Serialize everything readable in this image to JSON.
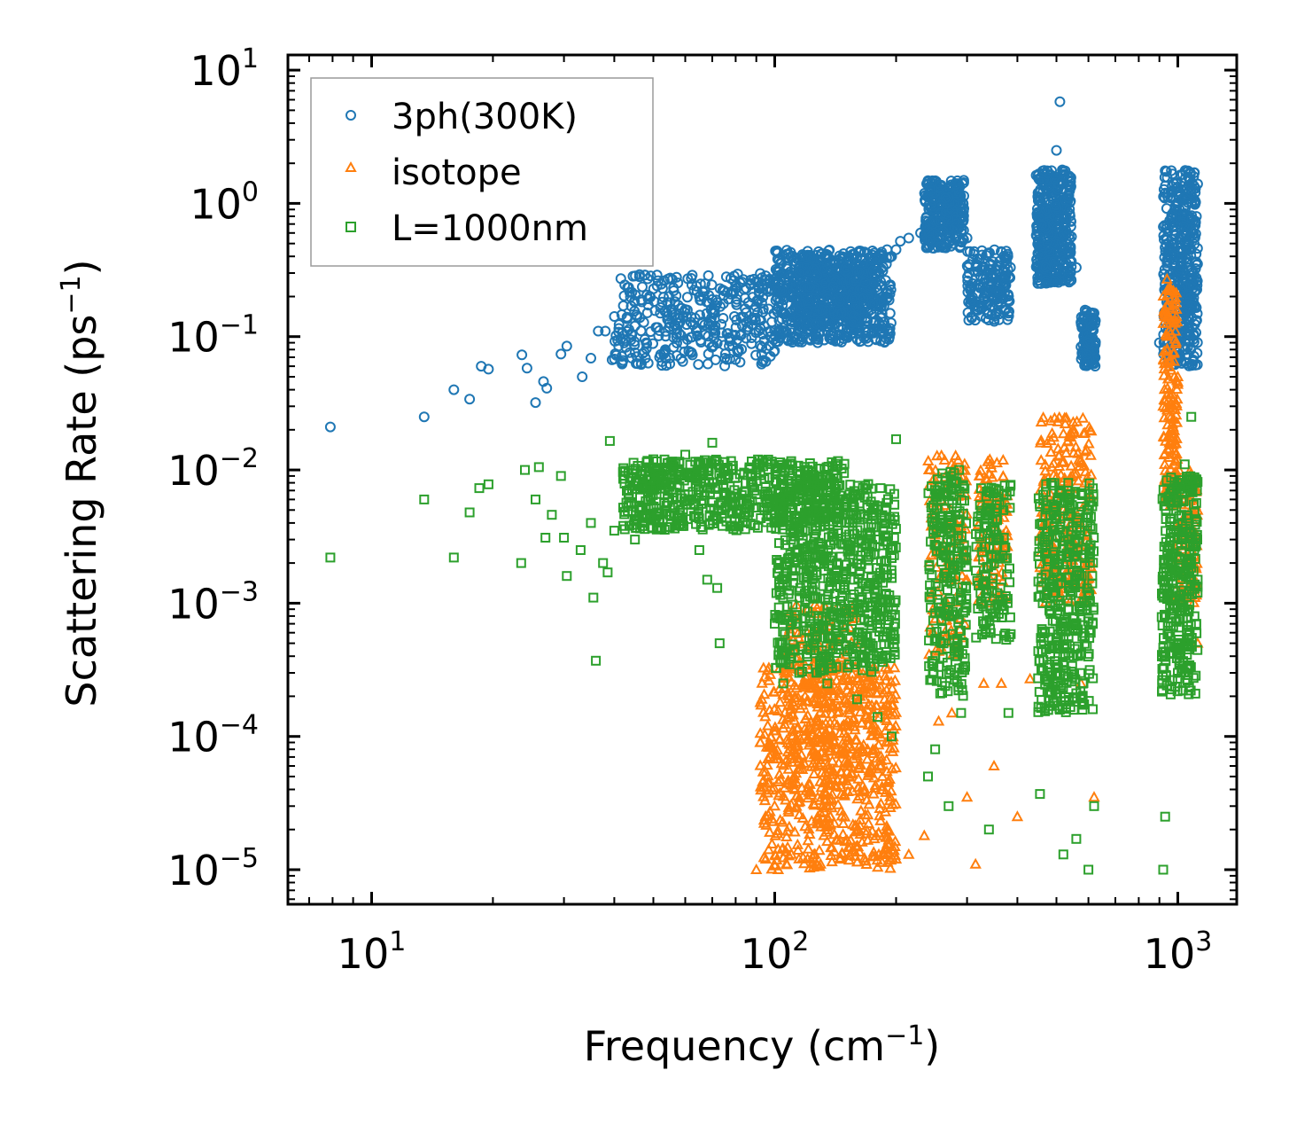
{
  "chart_data": {
    "type": "scatter",
    "xscale": "log",
    "yscale": "log",
    "xlim": [
      6.2,
      1400
    ],
    "ylim": [
      5.5e-06,
      13
    ],
    "xlabel": "Frequency (cm",
    "xlabel_sup": "−1",
    "xlabel_end": ")",
    "ylabel": "Scattering Rate (ps",
    "ylabel_sup": "−1",
    "ylabel_end": ")",
    "x_ticks": [
      {
        "value": 10,
        "base": "10",
        "exp": "1"
      },
      {
        "value": 100,
        "base": "10",
        "exp": "2"
      },
      {
        "value": 1000,
        "base": "10",
        "exp": "3"
      }
    ],
    "y_ticks": [
      {
        "value": 10,
        "base": "10",
        "exp": "1"
      },
      {
        "value": 1,
        "base": "10",
        "exp": "0"
      },
      {
        "value": 0.1,
        "base": "10",
        "exp": "−1"
      },
      {
        "value": 0.01,
        "base": "10",
        "exp": "−2"
      },
      {
        "value": 0.001,
        "base": "10",
        "exp": "−3"
      },
      {
        "value": 0.0001,
        "base": "10",
        "exp": "−4"
      },
      {
        "value": 1e-05,
        "base": "10",
        "exp": "−5"
      }
    ],
    "legend_position": "top-left",
    "series": [
      {
        "name": "3ph(300K)",
        "marker": "circle",
        "color": "#1f77b4",
        "points": [
          [
            7.9,
            0.021
          ],
          [
            13.5,
            0.025
          ],
          [
            16,
            0.04
          ],
          [
            17.5,
            0.034
          ],
          [
            18.7,
            0.06
          ],
          [
            19.5,
            0.057
          ],
          [
            23.6,
            0.073
          ],
          [
            24.3,
            0.058
          ],
          [
            25.5,
            0.032
          ],
          [
            26.7,
            0.046
          ],
          [
            27.2,
            0.041
          ],
          [
            29.5,
            0.074
          ],
          [
            30.5,
            0.085
          ],
          [
            33.3,
            0.05
          ],
          [
            35,
            0.069
          ],
          [
            36.5,
            0.11
          ],
          [
            38,
            0.11
          ],
          [
            39.5,
            0.067
          ],
          [
            41,
            0.085
          ],
          [
            43,
            0.14
          ],
          [
            45,
            0.12
          ],
          [
            48,
            0.09
          ],
          [
            52,
            0.15
          ],
          [
            55,
            0.18
          ],
          [
            60,
            0.16
          ],
          [
            65,
            0.2
          ],
          [
            70,
            0.19
          ],
          [
            75,
            0.22
          ],
          [
            80,
            0.24
          ],
          [
            85,
            0.23
          ],
          [
            90,
            0.26
          ],
          [
            95,
            0.25
          ],
          [
            100,
            0.22
          ],
          [
            108,
            0.28
          ],
          [
            115,
            0.3
          ],
          [
            120,
            0.34
          ],
          [
            125,
            0.32
          ],
          [
            130,
            0.38
          ],
          [
            140,
            0.35
          ],
          [
            150,
            0.33
          ],
          [
            160,
            0.4
          ],
          [
            170,
            0.42
          ],
          [
            180,
            0.38
          ],
          [
            190,
            0.45
          ],
          [
            195,
            0.4
          ],
          [
            200,
            0.45
          ],
          [
            205,
            0.52
          ],
          [
            215,
            0.55
          ],
          [
            230,
            0.6
          ],
          [
            245,
            0.95
          ],
          [
            255,
            1.3
          ],
          [
            265,
            1.1
          ],
          [
            275,
            0.9
          ],
          [
            290,
            0.85
          ],
          [
            300,
            0.55
          ],
          [
            310,
            0.38
          ],
          [
            325,
            0.32
          ],
          [
            340,
            0.26
          ],
          [
            360,
            0.22
          ],
          [
            380,
            0.15
          ],
          [
            450,
            1.2
          ],
          [
            470,
            0.9
          ],
          [
            490,
            0.7
          ],
          [
            500,
            2.5
          ],
          [
            510,
            5.8
          ],
          [
            520,
            1.6
          ],
          [
            535,
            1.1
          ],
          [
            560,
            0.33
          ],
          [
            580,
            0.12
          ],
          [
            600,
            0.09
          ],
          [
            620,
            0.15
          ],
          [
            900,
            0.09
          ],
          [
            930,
            0.25
          ],
          [
            950,
            0.22
          ],
          [
            970,
            0.15
          ],
          [
            1000,
            0.3
          ],
          [
            1040,
            0.6
          ],
          [
            1080,
            1.2
          ],
          [
            1100,
            1.7
          ],
          [
            1120,
            1.4
          ]
        ],
        "bands": [
          {
            "x": [
              40,
              100
            ],
            "y": [
              0.06,
              0.3
            ],
            "n": 360
          },
          {
            "x": [
              100,
              195
            ],
            "y": [
              0.09,
              0.45
            ],
            "n": 650
          },
          {
            "x": [
              110,
              180
            ],
            "y": [
              0.12,
              0.35
            ],
            "n": 220
          },
          {
            "x": [
              235,
              295
            ],
            "y": [
              0.45,
              1.5
            ],
            "n": 300
          },
          {
            "x": [
              300,
              385
            ],
            "y": [
              0.13,
              0.45
            ],
            "n": 170
          },
          {
            "x": [
              445,
              545
            ],
            "y": [
              0.25,
              1.8
            ],
            "n": 420
          },
          {
            "x": [
              575,
              625
            ],
            "y": [
              0.06,
              0.16
            ],
            "n": 110
          },
          {
            "x": [
              920,
              1120
            ],
            "y": [
              0.06,
              1.8
            ],
            "n": 420
          }
        ]
      },
      {
        "name": "isotope",
        "marker": "triangle",
        "color": "#ff7f0e",
        "points": [
          [
            90,
            1e-05
          ],
          [
            95,
            1.2e-05
          ],
          [
            102,
            1e-05
          ],
          [
            110,
            1.3e-05
          ],
          [
            130,
            1.1e-05
          ],
          [
            145,
            1.2e-05
          ],
          [
            170,
            8e-05
          ],
          [
            185,
            5e-05
          ],
          [
            190,
            2e-05
          ],
          [
            200,
            1.2e-05
          ],
          [
            215,
            1.3e-05
          ],
          [
            235,
            1.8e-05
          ],
          [
            255,
            0.00013
          ],
          [
            275,
            0.00015
          ],
          [
            300,
            3.5e-05
          ],
          [
            315,
            1.1e-05
          ],
          [
            330,
            0.00025
          ],
          [
            350,
            6e-05
          ],
          [
            365,
            0.00025
          ],
          [
            400,
            2.5e-05
          ],
          [
            430,
            0.00027
          ],
          [
            520,
            0.005
          ],
          [
            575,
            0.00025
          ],
          [
            620,
            3.5e-05
          ],
          [
            920,
            0.03
          ],
          [
            940,
            0.27
          ],
          [
            980,
            0.05
          ],
          [
            1000,
            0.05
          ],
          [
            1080,
            0.008
          ],
          [
            1120,
            0.0005
          ]
        ],
        "bands": [
          {
            "x": [
              92,
              200
            ],
            "y": [
              1e-05,
              0.00035
            ],
            "n": 650
          },
          {
            "x": [
              105,
              165
            ],
            "y": [
              3e-05,
              0.001
            ],
            "n": 220
          },
          {
            "x": [
              240,
              300
            ],
            "y": [
              0.0004,
              0.013
            ],
            "n": 120
          },
          {
            "x": [
              320,
              380
            ],
            "y": [
              0.001,
              0.012
            ],
            "n": 110
          },
          {
            "x": [
              455,
              610
            ],
            "y": [
              0.001,
              0.025
            ],
            "n": 220
          },
          {
            "x": [
              920,
              1000
            ],
            "y": [
              0.005,
              0.25
            ],
            "n": 170
          },
          {
            "x": [
              1000,
              1120
            ],
            "y": [
              0.001,
              0.01
            ],
            "n": 90
          }
        ]
      },
      {
        "name": "L=1000nm",
        "marker": "square",
        "color": "#2ca02c",
        "points": [
          [
            7.9,
            0.0022
          ],
          [
            13.5,
            0.006
          ],
          [
            16,
            0.0022
          ],
          [
            17.5,
            0.0048
          ],
          [
            18.5,
            0.0073
          ],
          [
            19.5,
            0.0078
          ],
          [
            23.5,
            0.002
          ],
          [
            24,
            0.01
          ],
          [
            25.5,
            0.006
          ],
          [
            26,
            0.0105
          ],
          [
            27,
            0.0031
          ],
          [
            28,
            0.0046
          ],
          [
            29.5,
            0.009
          ],
          [
            30,
            0.0031
          ],
          [
            30.5,
            0.0016
          ],
          [
            33,
            0.0025
          ],
          [
            35,
            0.004
          ],
          [
            35.5,
            0.0011
          ],
          [
            36,
            0.00037
          ],
          [
            37.5,
            0.002
          ],
          [
            38.5,
            0.0017
          ],
          [
            39,
            0.0165
          ],
          [
            40,
            0.0035
          ],
          [
            45,
            0.003
          ],
          [
            50,
            0.012
          ],
          [
            60,
            0.013
          ],
          [
            65,
            0.0025
          ],
          [
            68,
            0.0015
          ],
          [
            70,
            0.016
          ],
          [
            72,
            0.0013
          ],
          [
            73,
            0.0005
          ],
          [
            100,
            0.0007
          ],
          [
            105,
            0.00025
          ],
          [
            115,
            0.0003
          ],
          [
            135,
            0.00025
          ],
          [
            160,
            0.00019
          ],
          [
            180,
            0.00014
          ],
          [
            195,
            0.0001
          ],
          [
            200,
            0.017
          ],
          [
            240,
            5e-05
          ],
          [
            250,
            8e-05
          ],
          [
            270,
            3e-05
          ],
          [
            290,
            0.00015
          ],
          [
            340,
            2e-05
          ],
          [
            380,
            0.00015
          ],
          [
            455,
            3.7e-05
          ],
          [
            520,
            1.3e-05
          ],
          [
            560,
            1.7e-05
          ],
          [
            600,
            1e-05
          ],
          [
            620,
            3e-05
          ],
          [
            920,
            1e-05
          ],
          [
            930,
            2.5e-05
          ],
          [
            1000,
            0.0003
          ],
          [
            1020,
            0.003
          ],
          [
            1040,
            0.011
          ],
          [
            1080,
            0.025
          ],
          [
            1100,
            0.0048
          ],
          [
            1120,
            0.0015
          ]
        ],
        "bands": [
          {
            "x": [
              42,
              105
            ],
            "y": [
              0.0035,
              0.012
            ],
            "n": 450
          },
          {
            "x": [
              100,
              200
            ],
            "y": [
              0.0003,
              0.008
            ],
            "n": 700
          },
          {
            "x": [
              100,
              150
            ],
            "y": [
              0.004,
              0.012
            ],
            "n": 150
          },
          {
            "x": [
              240,
              300
            ],
            "y": [
              0.0002,
              0.01
            ],
            "n": 240
          },
          {
            "x": [
              315,
              385
            ],
            "y": [
              0.0005,
              0.008
            ],
            "n": 140
          },
          {
            "x": [
              450,
              620
            ],
            "y": [
              0.00015,
              0.008
            ],
            "n": 400
          },
          {
            "x": [
              910,
              1120
            ],
            "y": [
              0.0002,
              0.009
            ],
            "n": 320
          }
        ]
      }
    ]
  }
}
